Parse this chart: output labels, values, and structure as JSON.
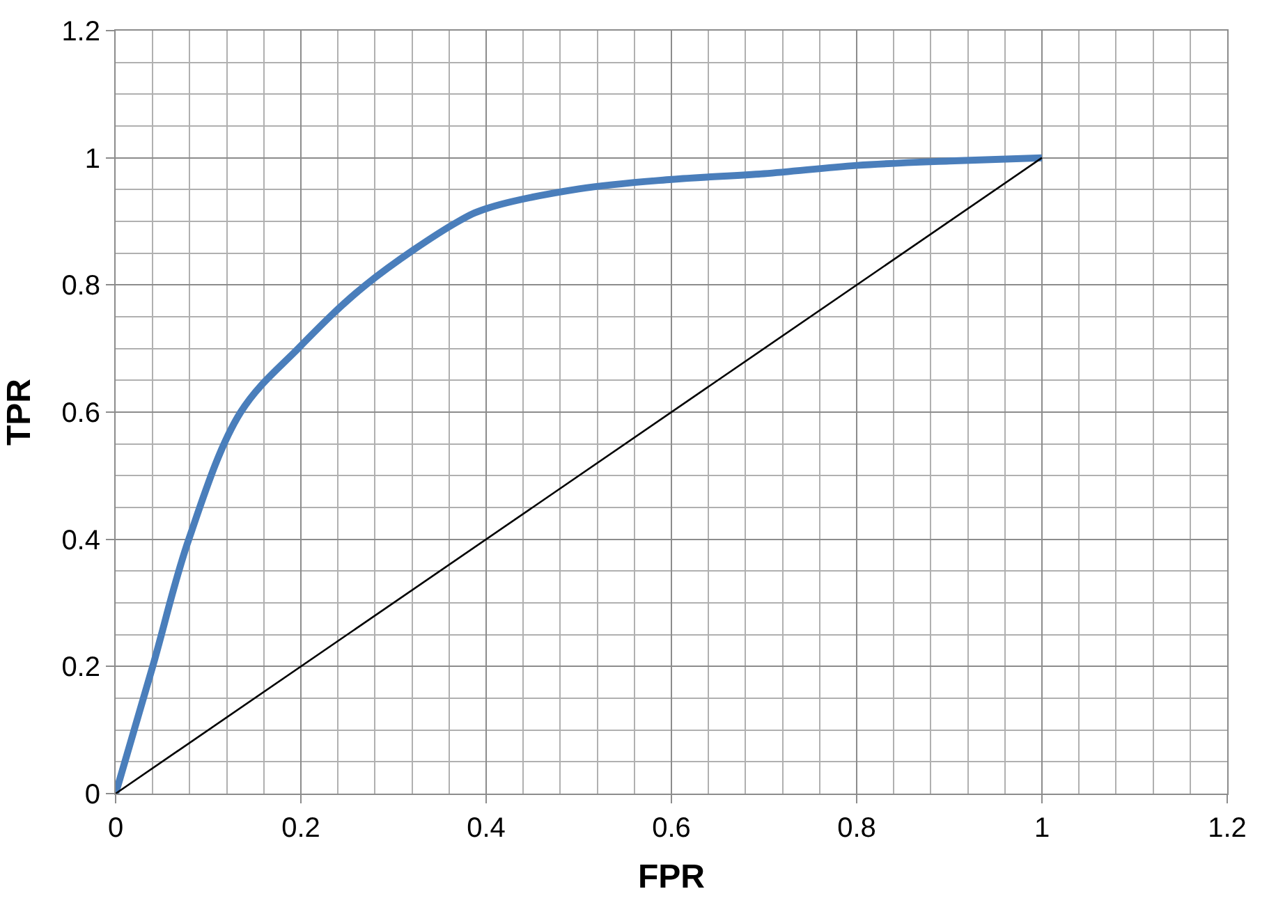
{
  "chart_data": {
    "type": "line",
    "xlabel": "FPR",
    "ylabel": "TPR",
    "xlim": [
      0,
      1.2
    ],
    "xticks": [
      0,
      0.2,
      0.4,
      0.6,
      0.8,
      1,
      1.2
    ],
    "ylim": [
      0,
      1.2
    ],
    "yticks": [
      0,
      0.2,
      0.4,
      0.6,
      0.8,
      1,
      1.2
    ],
    "grid": true,
    "marker": "none",
    "line_style": "solid",
    "series": [
      {
        "color": "#4a7ebb",
        "x": [
          0,
          0.04,
          0.079,
          0.135,
          0.197,
          0.27,
          0.37,
          0.4,
          0.5,
          0.6,
          0.7,
          0.8,
          0.9,
          1
        ],
        "values": [
          0,
          0.2,
          0.4,
          0.6,
          0.7,
          0.8,
          0.9,
          0.92,
          0.951,
          0.966,
          0.975,
          0.988,
          0.995,
          1
        ]
      },
      {
        "color": "#000000",
        "x": [
          0,
          1
        ],
        "values": [
          0,
          1
        ]
      }
    ]
  }
}
